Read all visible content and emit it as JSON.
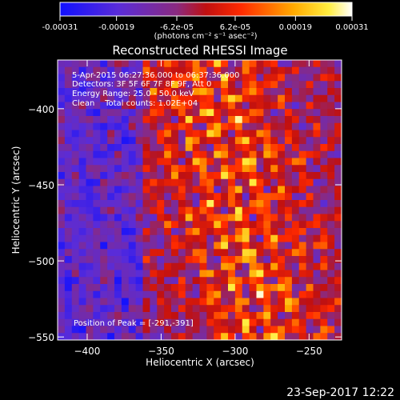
{
  "colorbar": {
    "tick_labels": [
      "-0.00031",
      "-0.00019",
      "-6.2e-05",
      "6.2e-05",
      "0.00019",
      "0.00031"
    ],
    "tick_values": [
      -0.00031,
      -0.00019,
      -6.2e-05,
      6.2e-05,
      0.00019,
      0.00031
    ],
    "range": [
      -0.00031,
      0.00031
    ],
    "units_label": "(photons cm⁻² s⁻¹ asec⁻²)"
  },
  "chart_data": {
    "type": "heatmap",
    "title": "Reconstructed RHESSI Image",
    "xlabel": "Heliocentric X (arcsec)",
    "ylabel": "Heliocentric Y (arcsec)",
    "xlim": [
      -420,
      -228
    ],
    "ylim": [
      -552,
      -368
    ],
    "x_ticks": [
      -400,
      -350,
      -300,
      -250
    ],
    "y_ticks": [
      -550,
      -500,
      -450,
      -400
    ],
    "grid": false,
    "colormap": "blue-purple-red-yellow-white",
    "annotations": [
      "5-Apr-2015 06:27:36.000 to 06:37:36.000",
      "Detectors: 3F 5F 6F 7F 8F 9F, Att 0",
      "Energy Range: 25.0 - 50.0 keV",
      "Clean    Total counts: 1.02E+04"
    ],
    "footer_annotation": "Position of Peak = [-291,-391]",
    "peak": [
      -291,
      -391
    ]
  },
  "timestamp": "23-Sep-2017 12:22"
}
